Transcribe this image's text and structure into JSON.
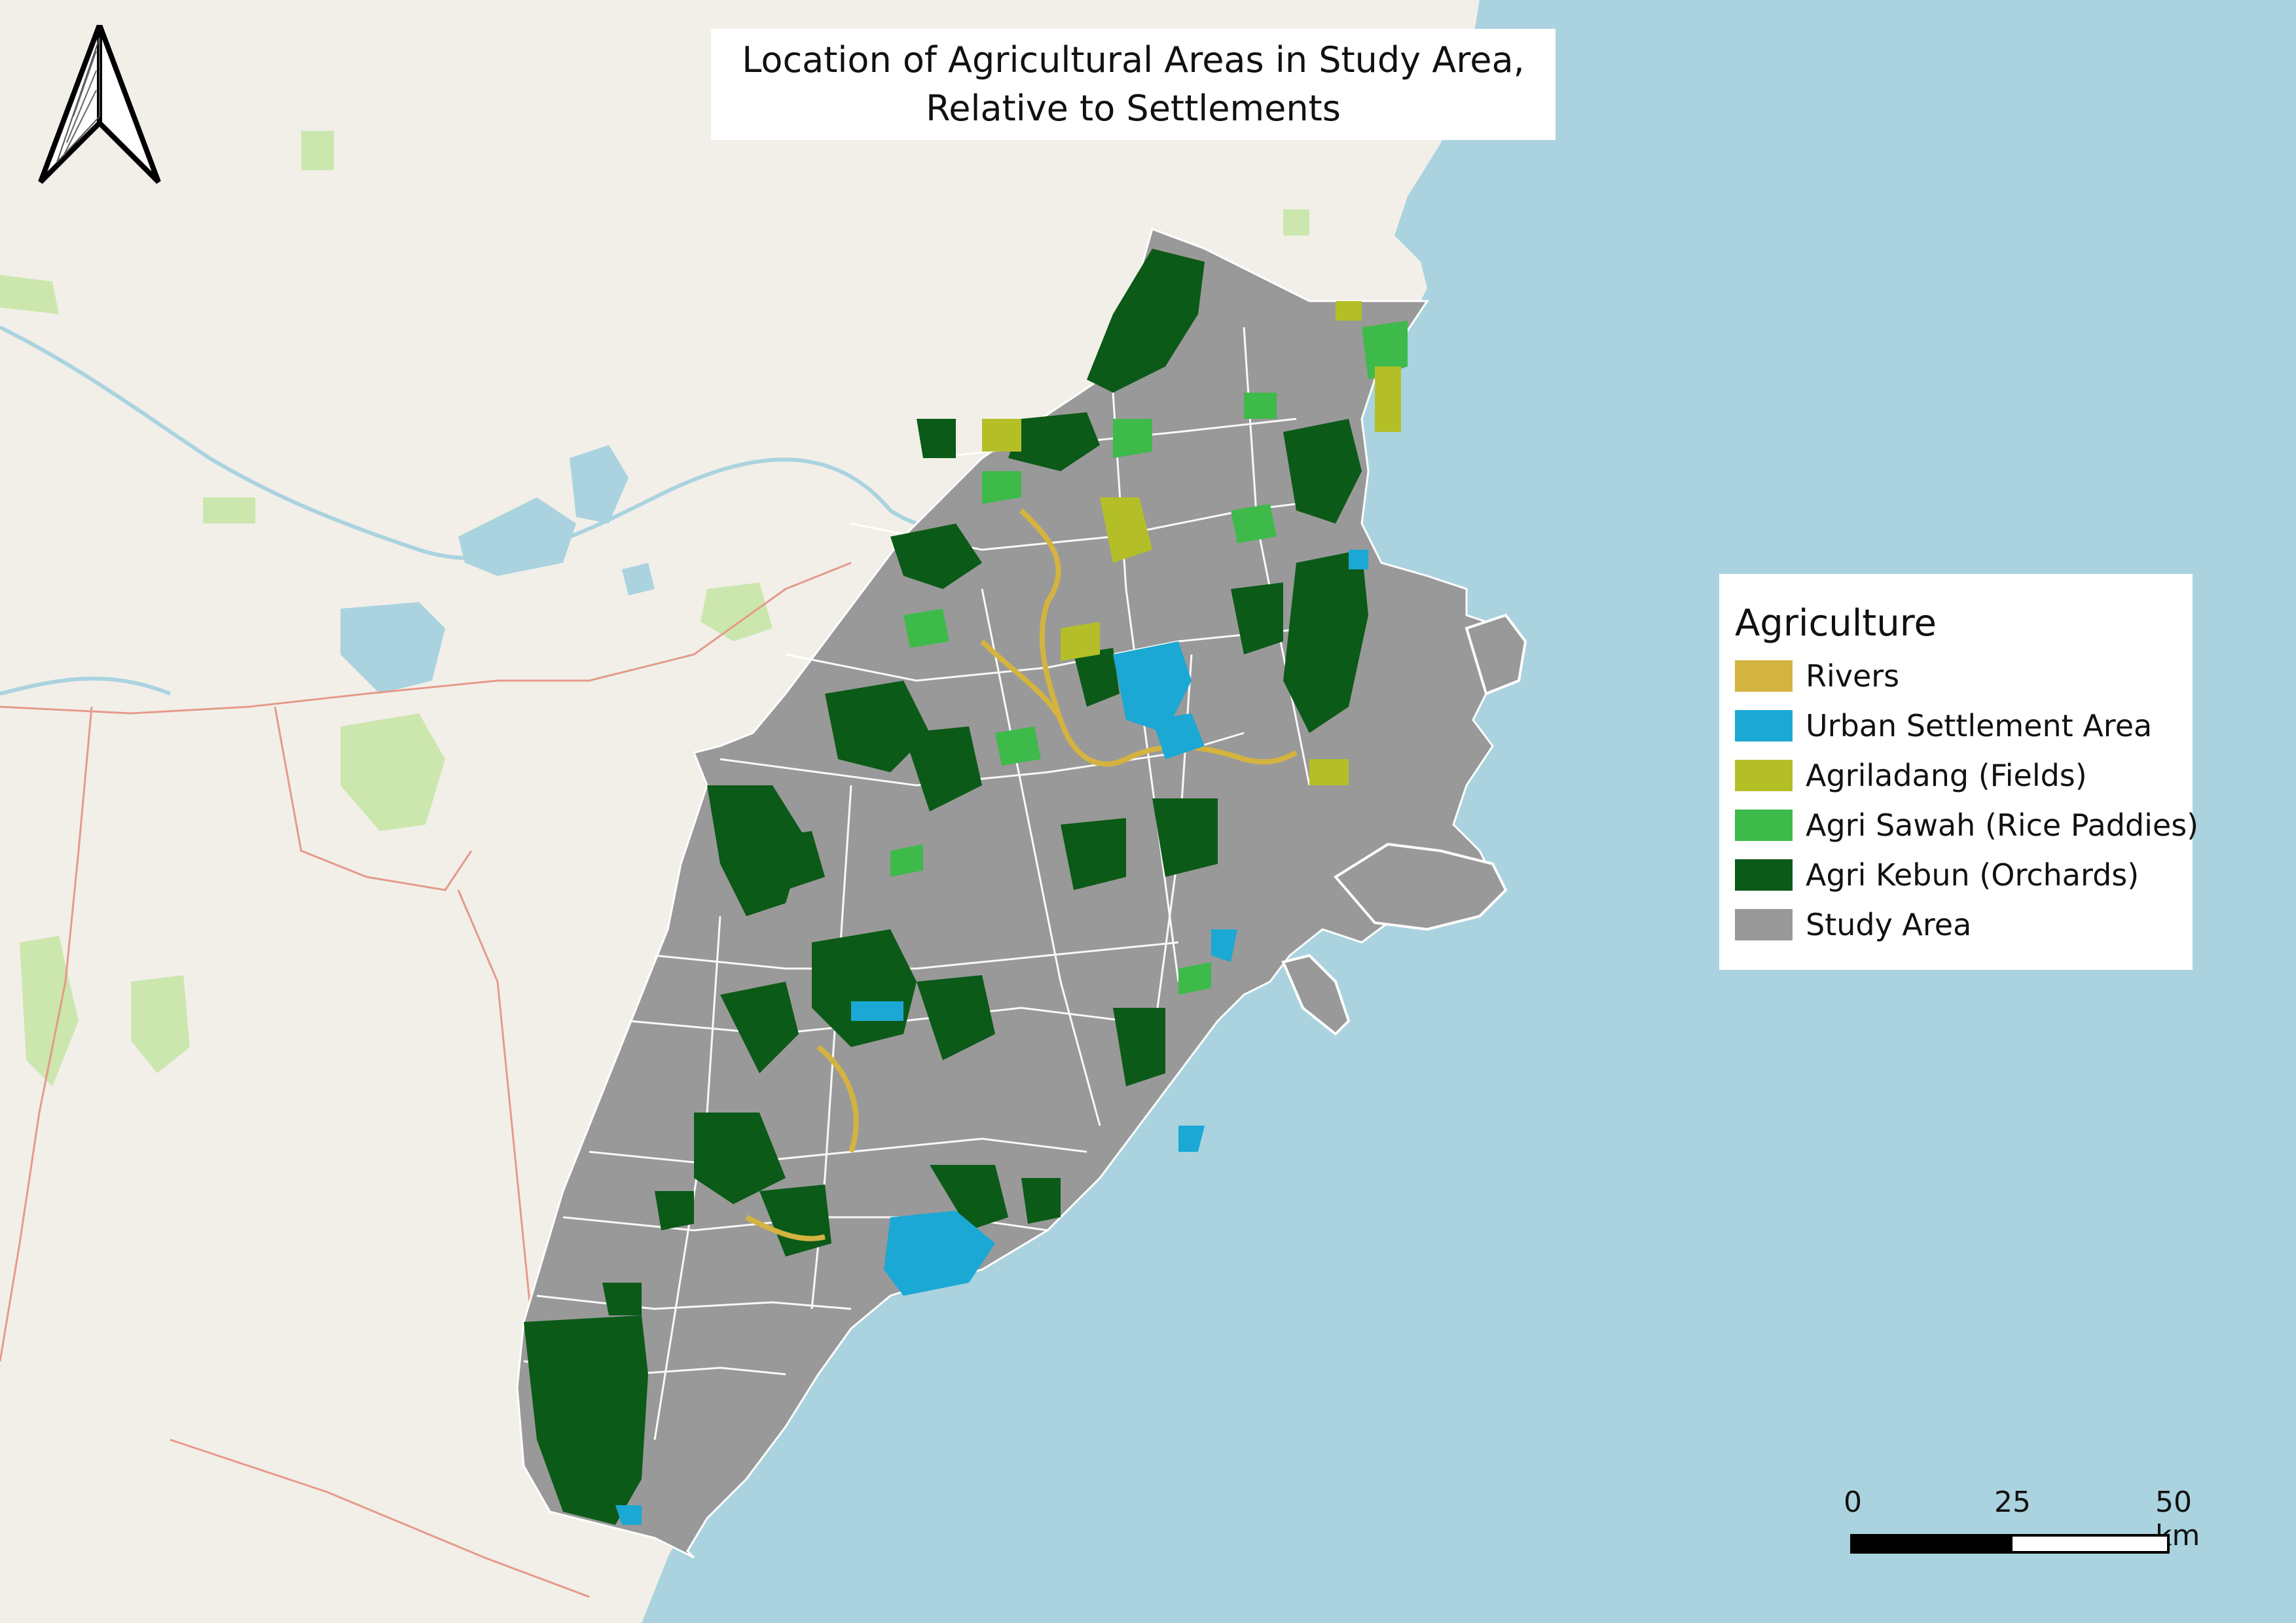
{
  "title": {
    "line1": "Location of Agricultural Areas in Study Area,",
    "line2": "Relative to Settlements"
  },
  "legend": {
    "heading": "Agriculture",
    "items": [
      {
        "label": "Rivers",
        "color": "#d4b340"
      },
      {
        "label": "Urban Settlement Area",
        "color": "#1ba8d4"
      },
      {
        "label": "Agriladang (Fields)",
        "color": "#b4bf28"
      },
      {
        "label": "Agri Sawah (Rice Paddies)",
        "color": "#3dba4a"
      },
      {
        "label": "Agri Kebun (Orchards)",
        "color": "#0b5a17"
      },
      {
        "label": "Study Area",
        "color": "#999999"
      }
    ]
  },
  "scale_bar": {
    "tick_0": "0",
    "tick_mid": "25",
    "tick_end": "50 km"
  },
  "north_arrow": {
    "icon": "north-arrow-icon"
  },
  "basemap": {
    "land_color": "#f2efe9",
    "sea_color": "#aad3df",
    "park_color": "#c8e6a7"
  }
}
